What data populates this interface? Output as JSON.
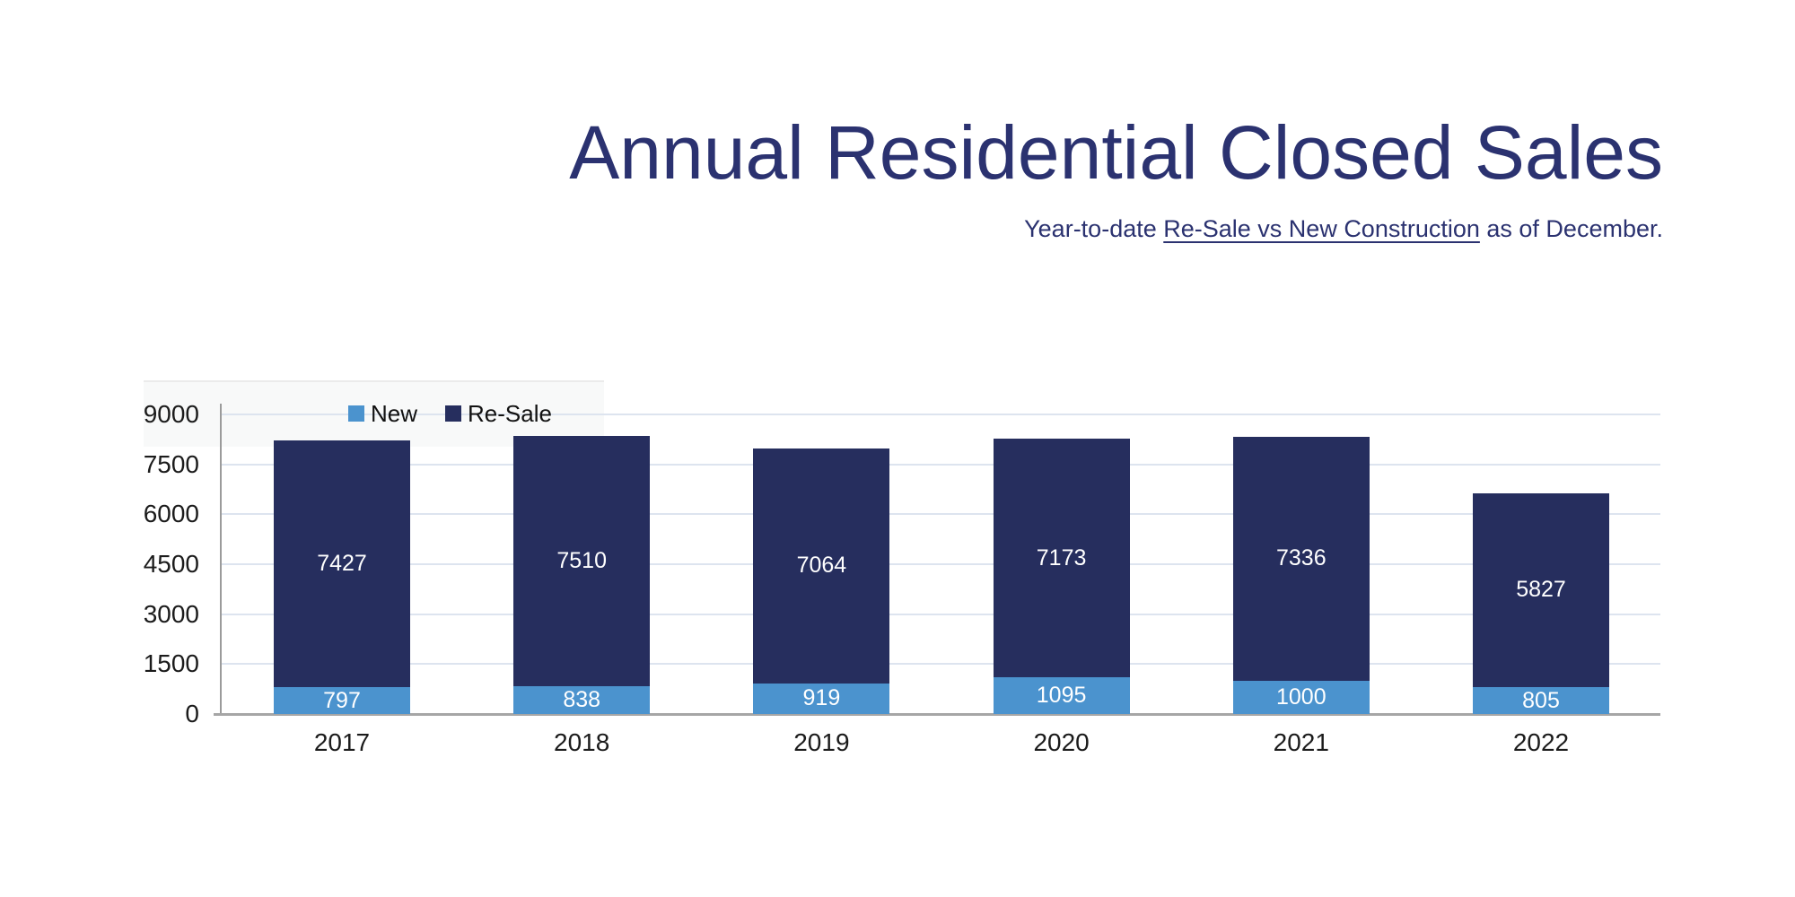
{
  "title": "Annual Residential Closed Sales",
  "subtitle": {
    "prefix": "Year-to-date ",
    "underlined": "Re-Sale vs New Construction",
    "suffix": " as of December."
  },
  "chart_data": {
    "type": "bar",
    "stacked": true,
    "title": "Annual Residential Closed Sales",
    "subtitle": "Year-to-date Re-Sale vs New Construction as of December.",
    "categories": [
      "2017",
      "2018",
      "2019",
      "2020",
      "2021",
      "2022"
    ],
    "series": [
      {
        "name": "New",
        "color": "#4b93ce",
        "values": [
          797,
          838,
          919,
          1095,
          1000,
          805
        ]
      },
      {
        "name": "Re-Sale",
        "color": "#262e5e",
        "values": [
          7427,
          7510,
          7064,
          7173,
          7336,
          5827
        ]
      }
    ],
    "totals": [
      8224,
      8348,
      7983,
      8268,
      8336,
      6632
    ],
    "ylim": [
      0,
      9000
    ],
    "yticks": [
      0,
      1500,
      3000,
      4500,
      6000,
      7500,
      9000
    ],
    "grid": true,
    "legend_position": "top-left-inside",
    "value_labels": true
  },
  "colors": {
    "title_text": "#2b3270",
    "new_bar": "#4b93ce",
    "resale_bar": "#262e5e",
    "gridline": "#dde4ef",
    "axis_line": "#9b9b9b",
    "baseline": "#a6a6a6",
    "tick_text": "#1b1b1b",
    "bar_value_text": "#ffffff",
    "background": "#ffffff"
  }
}
